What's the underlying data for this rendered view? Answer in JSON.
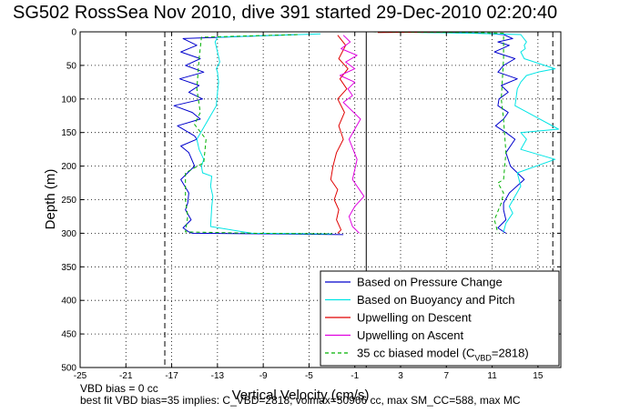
{
  "chart_data": {
    "type": "line",
    "title": "SG502 RossSea Nov 2010, dive 391 started 29-Dec-2010 02:20:40",
    "xlabel": "Vertical Velocity (cm/s)",
    "ylabel": "Depth (m)",
    "xlim": [
      -25,
      17
    ],
    "ylim": [
      500,
      0
    ],
    "y_reversed": true,
    "grid": true,
    "xticks": [
      "-25",
      "-21",
      "-17",
      "-13",
      "-9",
      "-5",
      "-1",
      "3",
      "7",
      "11",
      "15"
    ],
    "xtick_values": [
      -25,
      -21,
      -17,
      -13,
      -9,
      -5,
      -1,
      3,
      7,
      11,
      15
    ],
    "yticks": [
      "0",
      "50",
      "100",
      "150",
      "200",
      "250",
      "300",
      "350",
      "400",
      "450",
      "500"
    ],
    "ytick_values": [
      0,
      50,
      100,
      150,
      200,
      250,
      300,
      350,
      400,
      450,
      500
    ],
    "vlines": [
      {
        "x": -17.6,
        "style": "dashed"
      },
      {
        "x": 0,
        "style": "solid"
      },
      {
        "x": 16.3,
        "style": "dashed"
      }
    ],
    "legend_position": "bottom-right",
    "series": [
      {
        "name": "Based on Pressure Change",
        "color": "#0000cc",
        "segments": [
          {
            "x": [
              -6,
              -16,
              -14.8,
              -16.2,
              -14.5,
              -15.8,
              -14.2,
              -16.3,
              -14.6,
              -15.5,
              -14.3,
              -16.8,
              -15.2,
              -14.5,
              -16.5,
              -15,
              -14.8,
              -16.2,
              -15.5,
              -15,
              -16.2,
              -15.5,
              -15.6,
              -15.8,
              -15.3,
              -16,
              -15.5,
              -15.2,
              -8,
              -2
            ],
            "y": [
              4,
              10,
              20,
              30,
              40,
              50,
              60,
              70,
              80,
              90,
              100,
              110,
              120,
              130,
              140,
              155,
              160,
              170,
              180,
              200,
              220,
              240,
              255,
              265,
              280,
              292,
              298,
              300,
              301,
              302
            ]
          },
          {
            "x": [
              1,
              6,
              10,
              12,
              12.8,
              11.5,
              12.5,
              11.2,
              13,
              12,
              11.5,
              13.2,
              11.8,
              12.4,
              11.6,
              11.5,
              12.4,
              12,
              11.3,
              12.2,
              13,
              12.2,
              12.6,
              13.8,
              12.5,
              12,
              12,
              12.2,
              11.5,
              12.2
            ],
            "y": [
              0,
              1,
              2,
              4,
              10,
              15,
              20,
              30,
              40,
              50,
              60,
              70,
              80,
              90,
              100,
              110,
              120,
              130,
              140,
              150,
              160,
              180,
              200,
              220,
              240,
              255,
              265,
              280,
              292,
              300
            ]
          }
        ]
      },
      {
        "name": "Based on Buoyancy and Pitch",
        "color": "#00e5e5",
        "segments": [
          {
            "x": [
              -4,
              -13,
              -13.2,
              -13,
              -12.8,
              -13.1,
              -13,
              -12.9,
              -13,
              -13.1,
              -14.8,
              -14.6,
              -14.2,
              -14.4,
              -14.3,
              -13.5,
              -13.6,
              -13.4,
              -13.5,
              -13.6,
              -10,
              -3
            ],
            "y": [
              3,
              8,
              15,
              30,
              45,
              55,
              60,
              75,
              90,
              110,
              160,
              175,
              190,
              200,
              210,
              215,
              230,
              245,
              260,
              290,
              300,
              301
            ]
          },
          {
            "x": [
              1,
              9,
              13.5,
              14,
              13.8,
              13.9,
              13.5,
              13.8,
              16.5,
              15,
              14,
              13.5,
              13.2,
              13,
              16.8,
              13.5,
              14,
              13.5,
              16.5,
              13.2,
              13.5,
              13,
              12.5,
              12.8,
              12.2,
              12
            ],
            "y": [
              0,
              2,
              4,
              15,
              20,
              25,
              30,
              40,
              55,
              60,
              65,
              75,
              85,
              110,
              145,
              150,
              160,
              175,
              190,
              210,
              230,
              245,
              260,
              270,
              285,
              298
            ]
          }
        ]
      },
      {
        "name": "Upwelling on Descent",
        "color": "#e00000",
        "segments": [
          {
            "x": [
              -2.5,
              -1.8,
              -2.4,
              -1.6,
              -2.3,
              -1.7,
              -2.5,
              -1.9,
              -2.4,
              -2,
              -2.6,
              -2.9,
              -3.1,
              -2.5,
              -2.8,
              -2.4,
              -2.6,
              -2.2,
              -2.5
            ],
            "y": [
              5,
              20,
              40,
              55,
              70,
              85,
              100,
              120,
              140,
              160,
              180,
              200,
              220,
              235,
              250,
              265,
              280,
              295,
              300
            ]
          },
          {
            "x": [
              1,
              4,
              8
            ],
            "y": [
              1,
              0.7,
              0.4
            ]
          }
        ]
      },
      {
        "name": "Upwelling on Ascent",
        "color": "#e000e0",
        "segments": [
          {
            "x": [
              -2,
              -1.4,
              -2.2,
              -0.8,
              -1.8,
              -1,
              -2.3,
              -1,
              -1.6,
              -1.2,
              -2,
              -0.5,
              -1.5,
              -0.8,
              -1.2,
              -0.2,
              -1,
              -1.5,
              -1.2,
              -0.6
            ],
            "y": [
              5,
              15,
              25,
              35,
              45,
              55,
              65,
              75,
              85,
              95,
              105,
              130,
              160,
              190,
              220,
              245,
              260,
              275,
              290,
              300
            ]
          }
        ]
      },
      {
        "name": "35 cc biased model (C_VBD=2818)",
        "color": "#00b000",
        "dashed": true,
        "segments": [
          {
            "x": [
              -6,
              -14.4,
              -14.6,
              -14.8,
              -14.5,
              -15,
              -14,
              -14.2,
              -15.8,
              -15.8,
              -15.6,
              -15.8,
              -10,
              -3
            ],
            "y": [
              4,
              8,
              40,
              85,
              120,
              138,
              160,
              195,
              210,
              250,
              275,
              298,
              300,
              301
            ]
          },
          {
            "x": [
              0,
              9,
              12,
              12,
              11.8,
              12,
              12.2,
              12,
              11.5,
              12,
              11.8,
              11.2,
              11.5
            ],
            "y": [
              0,
              1,
              2,
              40,
              100,
              130,
              180,
              220,
              225,
              240,
              255,
              280,
              300
            ]
          }
        ]
      }
    ]
  },
  "footer": {
    "line1": "VBD bias = 0 cc",
    "line2": "best fit VBD bias=35 implies: C_VBD=2818, volmax=50966 cc, max SM_CC=588, max MC"
  }
}
